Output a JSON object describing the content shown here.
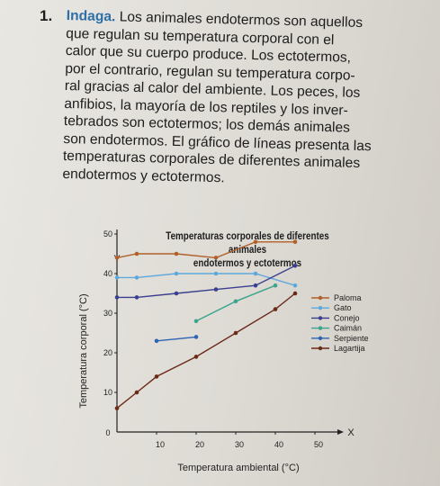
{
  "exercise": {
    "number": "1.",
    "keyword": "Indaga.",
    "lines": [
      " Los animales endotermos son aquellos",
      "que regulan su temperatura corporal con el",
      "calor que su cuerpo produce. Los ectotermos,",
      "por el contrario, regulan su temperatura corpo-",
      "ral gracias al calor del ambiente. Los peces, los",
      "anfibios, la mayoría de los reptiles y los inver-",
      "tebrados son ectotermos; los demás animales",
      "son endotermos. El gráfico de líneas presenta las",
      "temperaturas corporales de diferentes animales",
      "endotermos y ectotermos."
    ]
  },
  "chart_data": {
    "type": "line",
    "title": "Temperaturas corporales de diferentes animales endotermos y ectotermos",
    "title_lines": [
      "Temperaturas corporales de diferentes animales",
      "endotermos y ectotermos"
    ],
    "xlabel": "Temperatura ambiental (°C)",
    "ylabel": "Temperatura corporal (°C)",
    "x_axis_letter": "X",
    "y_axis_letter": "Y",
    "xlim": [
      0,
      55
    ],
    "ylim": [
      0,
      55
    ],
    "xticks": [
      10,
      20,
      30,
      40,
      50
    ],
    "yticks": [
      10,
      20,
      30,
      40,
      50
    ],
    "origin_label": "0",
    "legend_position": "right",
    "series": [
      {
        "name": "Paloma",
        "color": "#b0602a",
        "marker": "circle",
        "points": [
          [
            0,
            44
          ],
          [
            5,
            45
          ],
          [
            15,
            45
          ],
          [
            25,
            44
          ],
          [
            35,
            48
          ],
          [
            45,
            48
          ]
        ]
      },
      {
        "name": "Gato",
        "color": "#5ea9dc",
        "marker": "circle",
        "points": [
          [
            0,
            39
          ],
          [
            5,
            39
          ],
          [
            15,
            40
          ],
          [
            25,
            40
          ],
          [
            35,
            40
          ],
          [
            45,
            37
          ]
        ]
      },
      {
        "name": "Conejo",
        "color": "#3a3f8e",
        "marker": "circle",
        "points": [
          [
            0,
            34
          ],
          [
            5,
            34
          ],
          [
            15,
            35
          ],
          [
            25,
            36
          ],
          [
            35,
            37
          ],
          [
            45,
            42
          ]
        ]
      },
      {
        "name": "Caimán",
        "color": "#3ba48a",
        "marker": "circle",
        "points": [
          [
            20,
            28
          ],
          [
            30,
            33
          ],
          [
            40,
            37
          ]
        ]
      },
      {
        "name": "Serpiente",
        "color": "#2f63b3",
        "marker": "circle",
        "points": [
          [
            10,
            23
          ],
          [
            20,
            24
          ]
        ]
      },
      {
        "name": "Lagartija",
        "color": "#6a2a18",
        "marker": "circle",
        "points": [
          [
            0,
            6
          ],
          [
            5,
            10
          ],
          [
            10,
            14
          ],
          [
            20,
            19
          ],
          [
            30,
            25
          ],
          [
            40,
            31
          ],
          [
            45,
            35
          ]
        ]
      }
    ]
  },
  "colors": {
    "keyword": "#2d6fa8",
    "axis": "#222222"
  }
}
